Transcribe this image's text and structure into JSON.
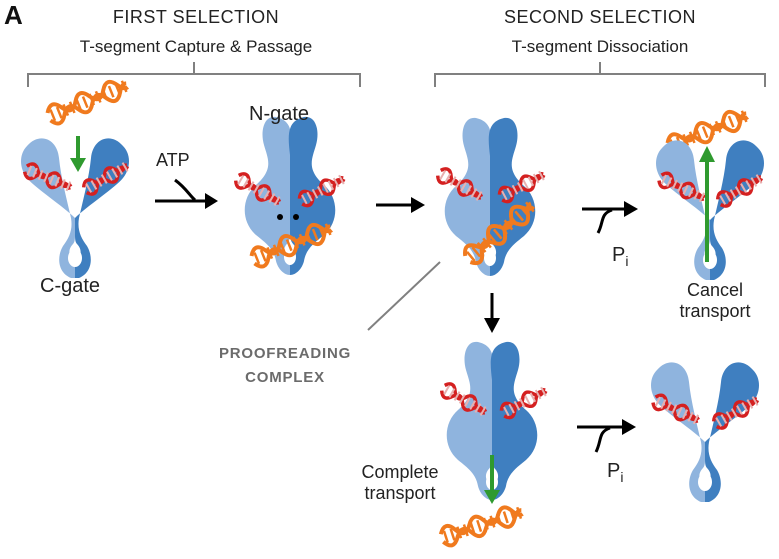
{
  "panel_label": "A",
  "first_selection": {
    "title": "FIRST  SELECTION",
    "subtitle": "T-segment Capture & Passage"
  },
  "second_selection": {
    "title": "SECOND SELECTION",
    "subtitle": "T-segment  Dissociation"
  },
  "labels": {
    "n_gate": "N-gate",
    "c_gate": "C-gate",
    "atp": "ATP",
    "pi_main": "P",
    "pi_sub": "i",
    "cancel_line1": "Cancel",
    "cancel_line2": "transport",
    "proofreading_line1": "PROOFREADING",
    "proofreading_line2": "COMPLEX",
    "complete_line1": "Complete",
    "complete_line2": "transport"
  },
  "colors": {
    "light_blue": "#8fb4de",
    "dark_blue": "#3f7fc0",
    "red_dna": "#d42020",
    "orange_dna": "#f07a1e",
    "green_arrow": "#2f9a2f",
    "bracket": "#808080"
  }
}
